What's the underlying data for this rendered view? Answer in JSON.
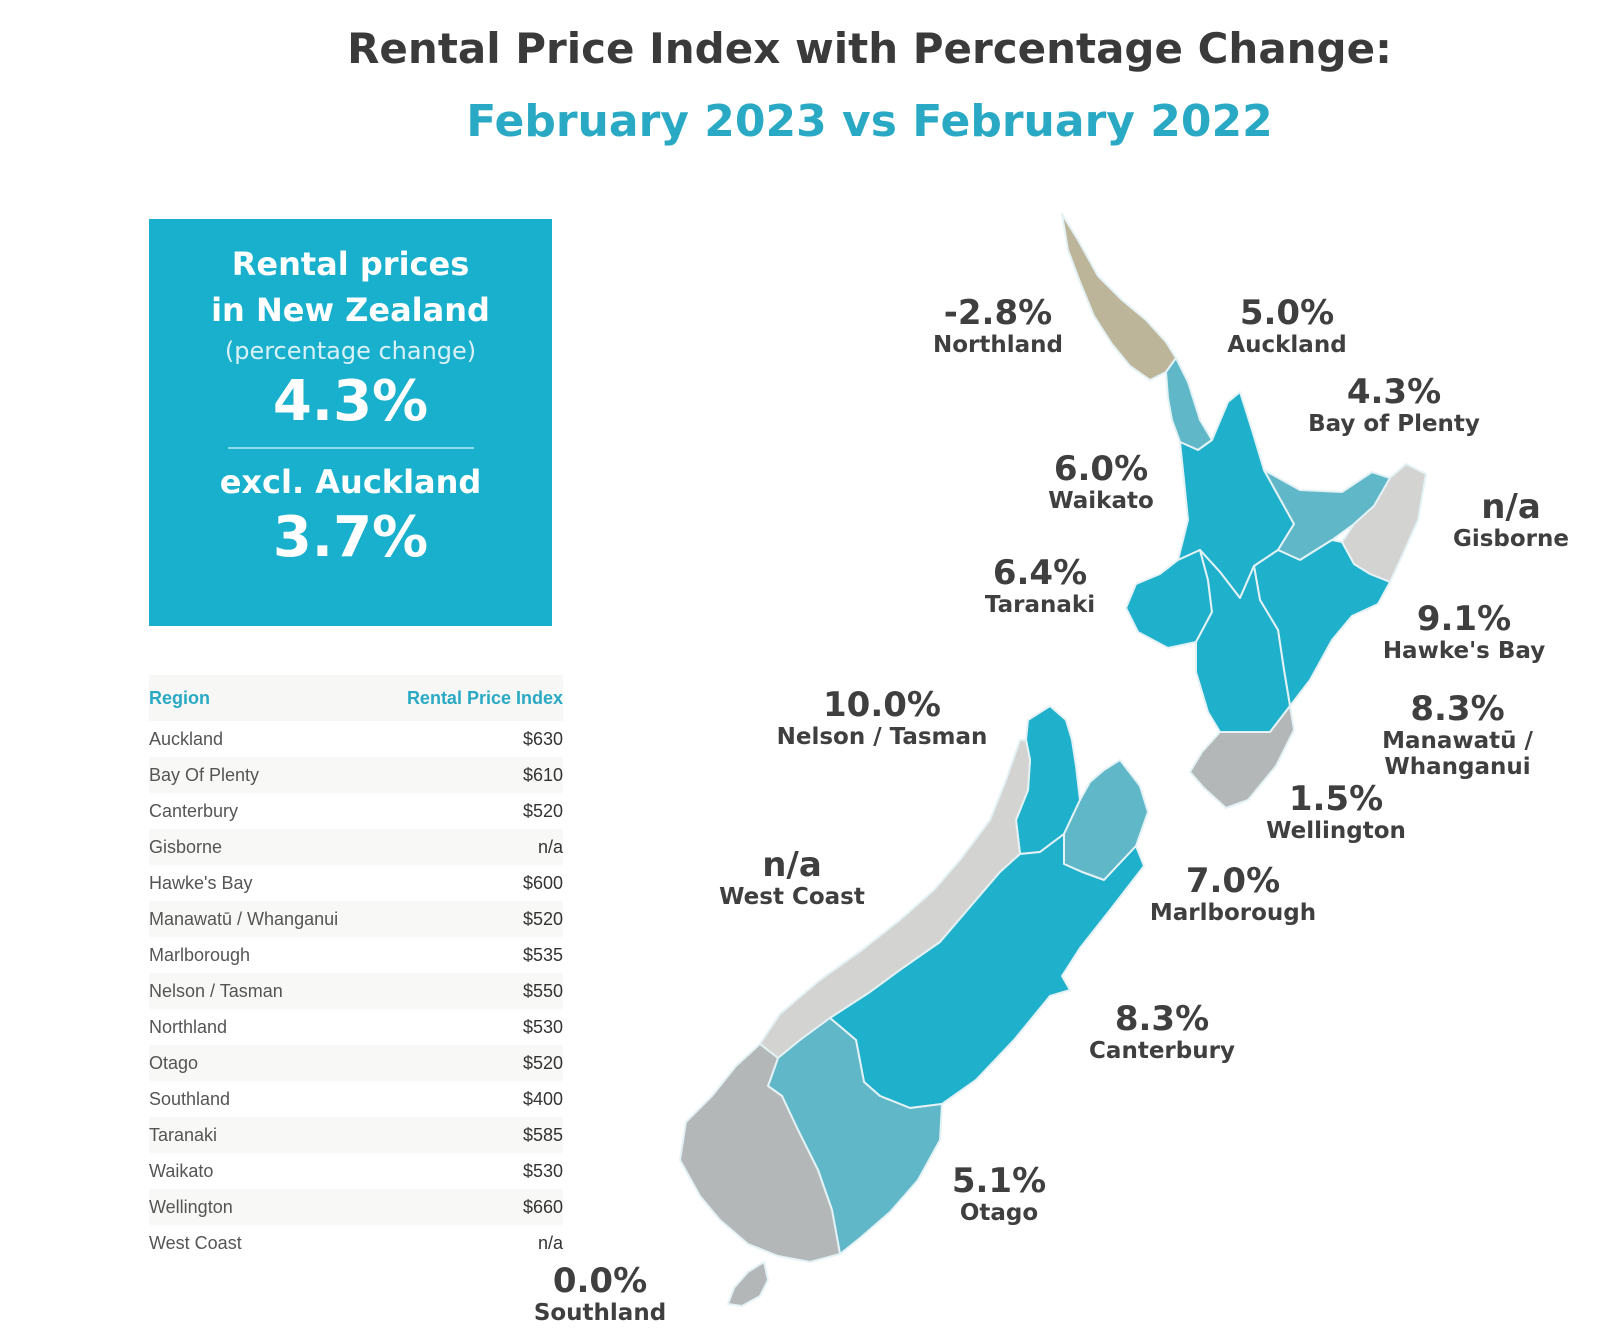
{
  "title": {
    "line1": "Rental Price Index with Percentage Change:",
    "line2": "February 2023 vs February 2022"
  },
  "summary": {
    "line1": "Rental prices",
    "line2": "in New Zealand",
    "sub": "(percentage change)",
    "national_value": "4.3%",
    "excl_label": "excl. Auckland",
    "excl_value": "3.7%"
  },
  "table": {
    "headers": [
      "Region",
      "Rental Price Index"
    ],
    "rows": [
      [
        "Auckland",
        "$630"
      ],
      [
        "Bay Of Plenty",
        "$610"
      ],
      [
        "Canterbury",
        "$520"
      ],
      [
        "Gisborne",
        "n/a"
      ],
      [
        "Hawke's Bay",
        "$600"
      ],
      [
        "Manawatū / Whanganui",
        "$520"
      ],
      [
        "Marlborough",
        "$535"
      ],
      [
        "Nelson / Tasman",
        "$550"
      ],
      [
        "Northland",
        "$530"
      ],
      [
        "Otago",
        "$520"
      ],
      [
        "Southland",
        "$400"
      ],
      [
        "Taranaki",
        "$585"
      ],
      [
        "Waikato",
        "$530"
      ],
      [
        "Wellington",
        "$660"
      ],
      [
        "West Coast",
        "n/a"
      ]
    ]
  },
  "map": {
    "colors": {
      "dark_teal": "#1fb0cc",
      "mid_teal": "#5fb7c8",
      "gray": "#c9c9c9",
      "light_gray": "#d3d3d1",
      "northland_tan": "#bdb59a",
      "border": "#e4f2f5"
    },
    "regions": {
      "northland": {
        "pct": "-2.8%",
        "name": "Northland"
      },
      "auckland": {
        "pct": "5.0%",
        "name": "Auckland"
      },
      "bay_of_plenty": {
        "pct": "4.3%",
        "name": "Bay of Plenty"
      },
      "waikato": {
        "pct": "6.0%",
        "name": "Waikato"
      },
      "gisborne": {
        "pct": "n/a",
        "name": "Gisborne"
      },
      "taranaki": {
        "pct": "6.4%",
        "name": "Taranaki"
      },
      "hawkes_bay": {
        "pct": "9.1%",
        "name": "Hawke's Bay"
      },
      "manawatu": {
        "pct": "8.3%",
        "name": "Manawatū / Whanganui"
      },
      "nelson": {
        "pct": "10.0%",
        "name": "Nelson / Tasman"
      },
      "wellington": {
        "pct": "1.5%",
        "name": "Wellington"
      },
      "west_coast": {
        "pct": "n/a",
        "name": "West Coast"
      },
      "marlborough": {
        "pct": "7.0%",
        "name": "Marlborough"
      },
      "canterbury": {
        "pct": "8.3%",
        "name": "Canterbury"
      },
      "otago": {
        "pct": "5.1%",
        "name": "Otago"
      },
      "southland": {
        "pct": "0.0%",
        "name": "Southland"
      }
    }
  }
}
